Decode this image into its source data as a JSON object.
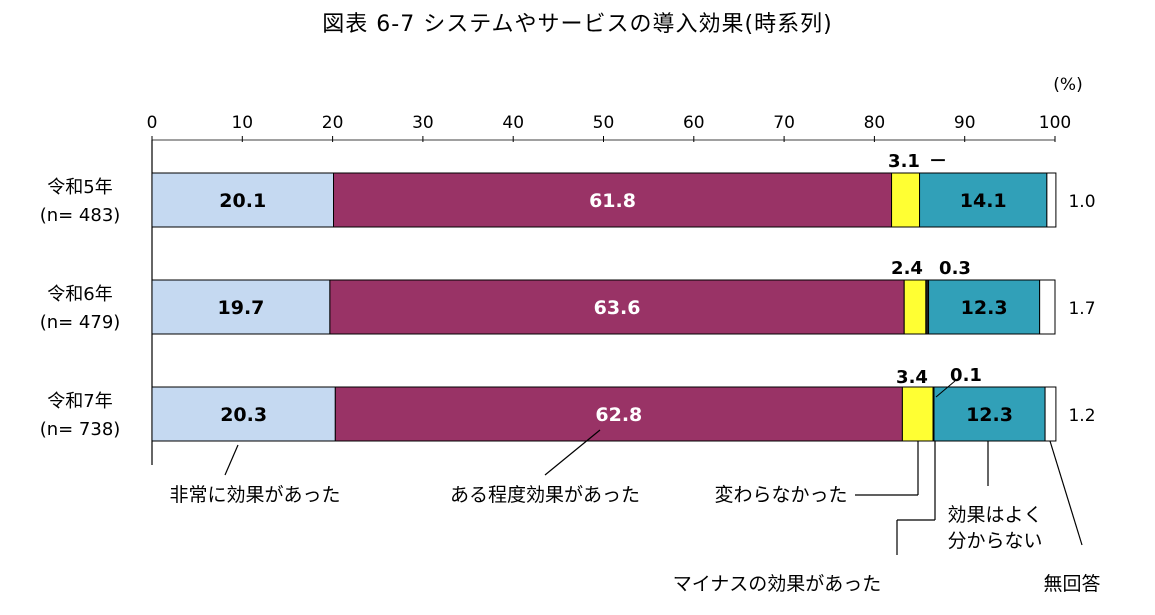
{
  "title": "図表 6-7  システムやサービスの導入効果(時系列)",
  "chart_data": {
    "type": "bar",
    "orientation": "horizontal",
    "stacked": true,
    "title": "図表 6-7  システムやサービスの導入効果(時系列)",
    "unit": "(%)",
    "xlim": [
      0,
      100
    ],
    "xticks": [
      "0",
      "10",
      "20",
      "30",
      "40",
      "50",
      "60",
      "70",
      "80",
      "90",
      "100"
    ],
    "categories": [
      {
        "label": "令和5年",
        "n": "(n= 483)"
      },
      {
        "label": "令和6年",
        "n": "(n= 479)"
      },
      {
        "label": "令和7年",
        "n": "(n= 738)"
      }
    ],
    "series": [
      {
        "name": "非常に効果があった",
        "color": "#c5d9f1",
        "values": [
          20.1,
          19.7,
          20.3
        ],
        "labels": [
          "20.1",
          "19.7",
          "20.3"
        ]
      },
      {
        "name": "ある程度効果があった",
        "color": "#993366",
        "values": [
          61.8,
          63.6,
          62.8
        ],
        "labels": [
          "61.8",
          "63.6",
          "62.8"
        ]
      },
      {
        "name": "変わらなかった",
        "color": "#ffff33",
        "values": [
          3.1,
          2.4,
          3.4
        ],
        "labels": [
          "3.1",
          "2.4",
          "3.4"
        ]
      },
      {
        "name": "マイナスの効果があった",
        "color": "#1f1f1f",
        "values": [
          0,
          0.3,
          0.1
        ],
        "labels": [
          "－",
          "0.3",
          "0.1"
        ]
      },
      {
        "name": "効果はよく\n分からない",
        "color": "#31a0b8",
        "values": [
          14.1,
          12.3,
          12.3
        ],
        "labels": [
          "14.1",
          "12.3",
          "12.3"
        ]
      },
      {
        "name": "無回答",
        "color": "#ffffff",
        "values": [
          1.0,
          1.7,
          1.2
        ],
        "labels": [
          "1.0",
          "1.7",
          "1.2"
        ]
      }
    ],
    "legend_placement": "bottom (leader-line callouts)",
    "grid": false
  }
}
